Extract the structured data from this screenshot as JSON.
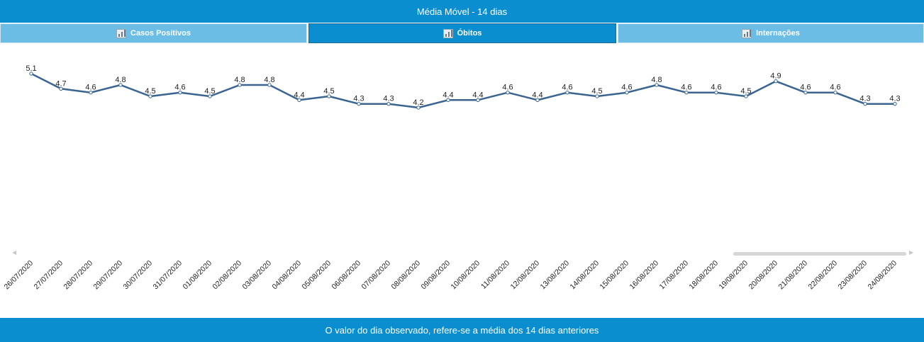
{
  "header": {
    "title": "Média Móvel - 14 dias"
  },
  "tabs": [
    {
      "label": "Casos Positivos",
      "icon": "bar-chart-icon",
      "active": false
    },
    {
      "label": "Óbitos",
      "icon": "bar-chart-icon",
      "active": true
    },
    {
      "label": "Internações",
      "icon": "bar-chart-icon",
      "active": false
    }
  ],
  "footer": {
    "text": "O valor do dia observado, refere-se a média dos 14 dias anteriores"
  },
  "colors": {
    "accent": "#0a8ed0",
    "tab_inactive": "#6bbde6",
    "line": "#3a6591"
  },
  "chart_data": {
    "type": "line",
    "categories": [
      "26/07/2020",
      "27/07/2020",
      "28/07/2020",
      "29/07/2020",
      "30/07/2020",
      "31/07/2020",
      "01/08/2020",
      "02/08/2020",
      "03/08/2020",
      "04/08/2020",
      "05/08/2020",
      "06/08/2020",
      "07/08/2020",
      "08/08/2020",
      "09/08/2020",
      "10/08/2020",
      "11/08/2020",
      "12/08/2020",
      "13/08/2020",
      "14/08/2020",
      "15/08/2020",
      "16/08/2020",
      "17/08/2020",
      "18/08/2020",
      "19/08/2020",
      "20/08/2020",
      "21/08/2020",
      "22/08/2020",
      "23/08/2020",
      "24/08/2020"
    ],
    "values": [
      5.1,
      4.7,
      4.6,
      4.8,
      4.5,
      4.6,
      4.5,
      4.8,
      4.8,
      4.4,
      4.5,
      4.3,
      4.3,
      4.2,
      4.4,
      4.4,
      4.6,
      4.4,
      4.6,
      4.5,
      4.6,
      4.8,
      4.6,
      4.6,
      4.5,
      4.9,
      4.6,
      4.6,
      4.3,
      4.3
    ],
    "title": "Média Móvel - 14 dias",
    "xlabel": "",
    "ylabel": "",
    "data_labels": true,
    "grid": false,
    "legend": "none",
    "horizontal_scrollbar": true
  }
}
